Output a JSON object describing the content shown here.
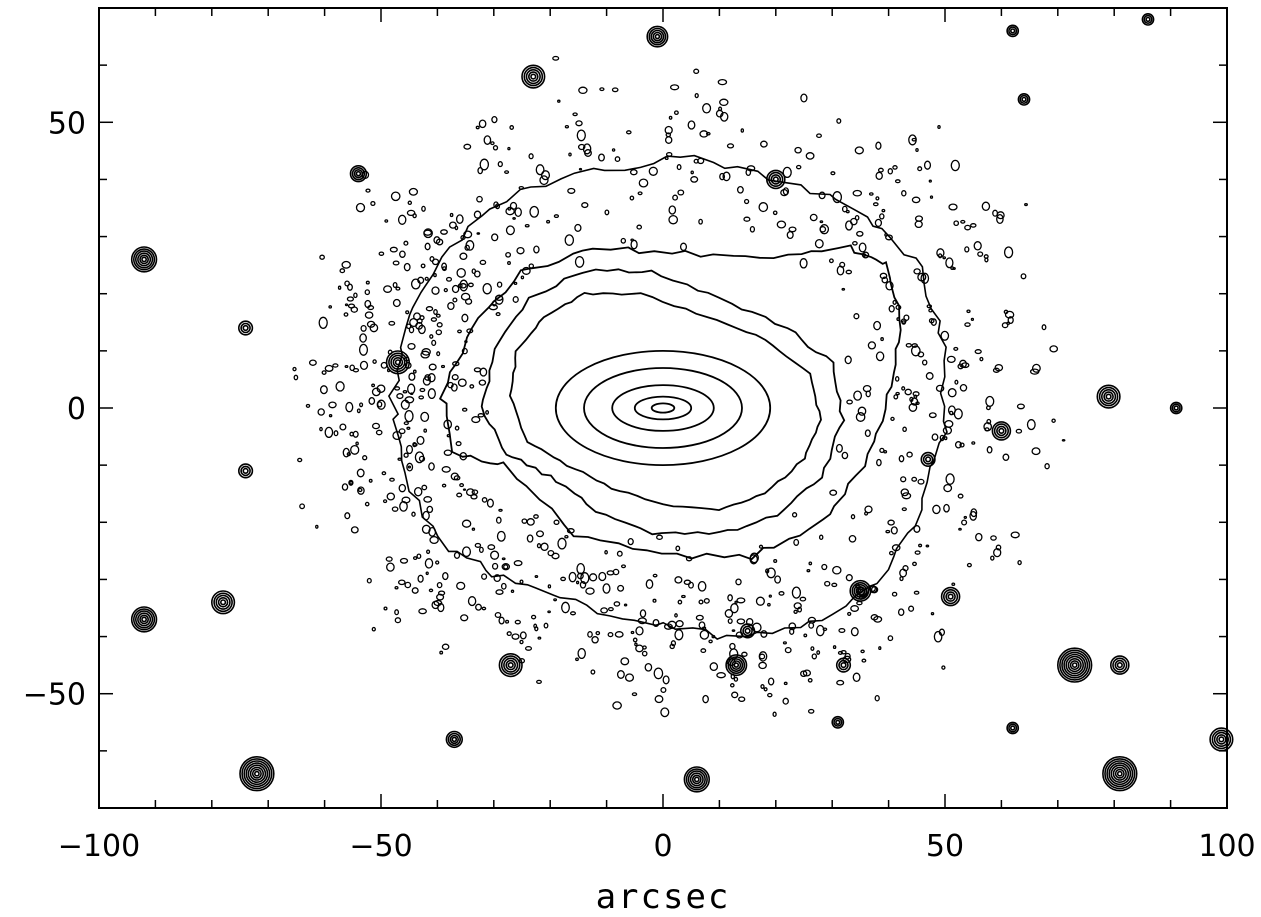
{
  "chart_data": {
    "type": "contour",
    "title": "",
    "xlabel": "arcsec",
    "ylabel": "",
    "xlim": [
      -100,
      100
    ],
    "ylim": [
      -70,
      70
    ],
    "x_ticks": [
      {
        "value": -100,
        "label": "−100"
      },
      {
        "value": -50,
        "label": "−50"
      },
      {
        "value": 0,
        "label": "0"
      },
      {
        "value": 50,
        "label": "50"
      },
      {
        "value": 100,
        "label": "100"
      }
    ],
    "y_ticks": [
      {
        "value": -50,
        "label": "−50"
      },
      {
        "value": 0,
        "label": "0"
      },
      {
        "value": 50,
        "label": "50"
      }
    ],
    "x_minor_step": 10,
    "y_minor_step": 10,
    "grid": false,
    "galaxy": {
      "center": [
        0,
        0
      ],
      "core_contours": [
        {
          "rx": 2,
          "ry": 0.8
        },
        {
          "rx": 5,
          "ry": 2
        },
        {
          "rx": 9,
          "ry": 4
        },
        {
          "rx": 14,
          "ry": 7
        },
        {
          "rx": 19,
          "ry": 10
        }
      ],
      "inner_isophotes": [
        [
          [
            -17,
            -10
          ],
          [
            -24,
            -6
          ],
          [
            -27,
            2
          ],
          [
            -26,
            10
          ],
          [
            -21,
            16
          ],
          [
            -14,
            20
          ],
          [
            -4,
            20
          ],
          [
            8,
            16
          ],
          [
            18,
            12
          ],
          [
            26,
            6
          ],
          [
            28,
            -2
          ],
          [
            25,
            -9
          ],
          [
            18,
            -15
          ],
          [
            10,
            -18
          ],
          [
            0,
            -17
          ],
          [
            -9,
            -14
          ]
        ],
        [
          [
            -20,
            -12
          ],
          [
            -28,
            -8
          ],
          [
            -32,
            0
          ],
          [
            -30,
            10
          ],
          [
            -24,
            19
          ],
          [
            -14,
            24
          ],
          [
            -2,
            24
          ],
          [
            10,
            19
          ],
          [
            22,
            14
          ],
          [
            30,
            8
          ],
          [
            32,
            -2
          ],
          [
            28,
            -12
          ],
          [
            20,
            -19
          ],
          [
            10,
            -22
          ],
          [
            -2,
            -22
          ],
          [
            -12,
            -18
          ]
        ],
        [
          [
            -28,
            -10
          ],
          [
            -37,
            -8
          ],
          [
            -39,
            2
          ],
          [
            -34,
            14
          ],
          [
            -25,
            24
          ],
          [
            -12,
            28
          ],
          [
            4,
            27
          ],
          [
            20,
            26
          ],
          [
            33,
            28
          ],
          [
            40,
            25
          ],
          [
            42,
            14
          ],
          [
            40,
            2
          ],
          [
            36,
            -10
          ],
          [
            28,
            -20
          ],
          [
            16,
            -26
          ],
          [
            0,
            -26
          ],
          [
            -16,
            -22
          ]
        ]
      ],
      "outer_envelope": [
        [
          [
            -38,
            -25
          ],
          [
            -46,
            -12
          ],
          [
            -48,
            2
          ],
          [
            -45,
            16
          ],
          [
            -38,
            28
          ],
          [
            -26,
            38
          ],
          [
            -10,
            42
          ],
          [
            6,
            44
          ],
          [
            22,
            40
          ],
          [
            36,
            34
          ],
          [
            46,
            24
          ],
          [
            50,
            10
          ],
          [
            50,
            -4
          ],
          [
            46,
            -18
          ],
          [
            38,
            -30
          ],
          [
            26,
            -38
          ],
          [
            12,
            -40
          ],
          [
            -2,
            -38
          ],
          [
            -16,
            -34
          ],
          [
            -28,
            -30
          ]
        ]
      ]
    },
    "stars": [
      {
        "x": -92,
        "y": 26,
        "r": 2.2
      },
      {
        "x": -92,
        "y": -37,
        "r": 2.2
      },
      {
        "x": -78,
        "y": -34,
        "r": 2.0
      },
      {
        "x": -72,
        "y": -64,
        "r": 3.0
      },
      {
        "x": -74,
        "y": 14,
        "r": 1.2
      },
      {
        "x": -74,
        "y": -11,
        "r": 1.2
      },
      {
        "x": -47,
        "y": 8,
        "r": 2.0
      },
      {
        "x": -54,
        "y": 41,
        "r": 1.4
      },
      {
        "x": -23,
        "y": 58,
        "r": 2.0
      },
      {
        "x": -1,
        "y": 65,
        "r": 1.8
      },
      {
        "x": 20,
        "y": 40,
        "r": 1.6
      },
      {
        "x": -27,
        "y": -45,
        "r": 2.0
      },
      {
        "x": -37,
        "y": -58,
        "r": 1.4
      },
      {
        "x": 6,
        "y": -65,
        "r": 2.2
      },
      {
        "x": 13,
        "y": -45,
        "r": 1.8
      },
      {
        "x": 15,
        "y": -39,
        "r": 1.2
      },
      {
        "x": 35,
        "y": -32,
        "r": 1.8
      },
      {
        "x": 51,
        "y": -33,
        "r": 1.6
      },
      {
        "x": 60,
        "y": -4,
        "r": 1.6
      },
      {
        "x": 47,
        "y": -9,
        "r": 1.2
      },
      {
        "x": 79,
        "y": 2,
        "r": 2.0
      },
      {
        "x": 91,
        "y": 0,
        "r": 1.0
      },
      {
        "x": 73,
        "y": -45,
        "r": 3.0
      },
      {
        "x": 81,
        "y": -45,
        "r": 1.6
      },
      {
        "x": 81,
        "y": -64,
        "r": 3.0
      },
      {
        "x": 99,
        "y": -58,
        "r": 2.0
      },
      {
        "x": 62,
        "y": -56,
        "r": 1.0
      },
      {
        "x": 62,
        "y": 66,
        "r": 1.0
      },
      {
        "x": 86,
        "y": 68,
        "r": 1.0
      },
      {
        "x": 64,
        "y": 54,
        "r": 1.0
      },
      {
        "x": 32,
        "y": -45,
        "r": 1.2
      },
      {
        "x": 31,
        "y": -55,
        "r": 1.0
      }
    ]
  }
}
